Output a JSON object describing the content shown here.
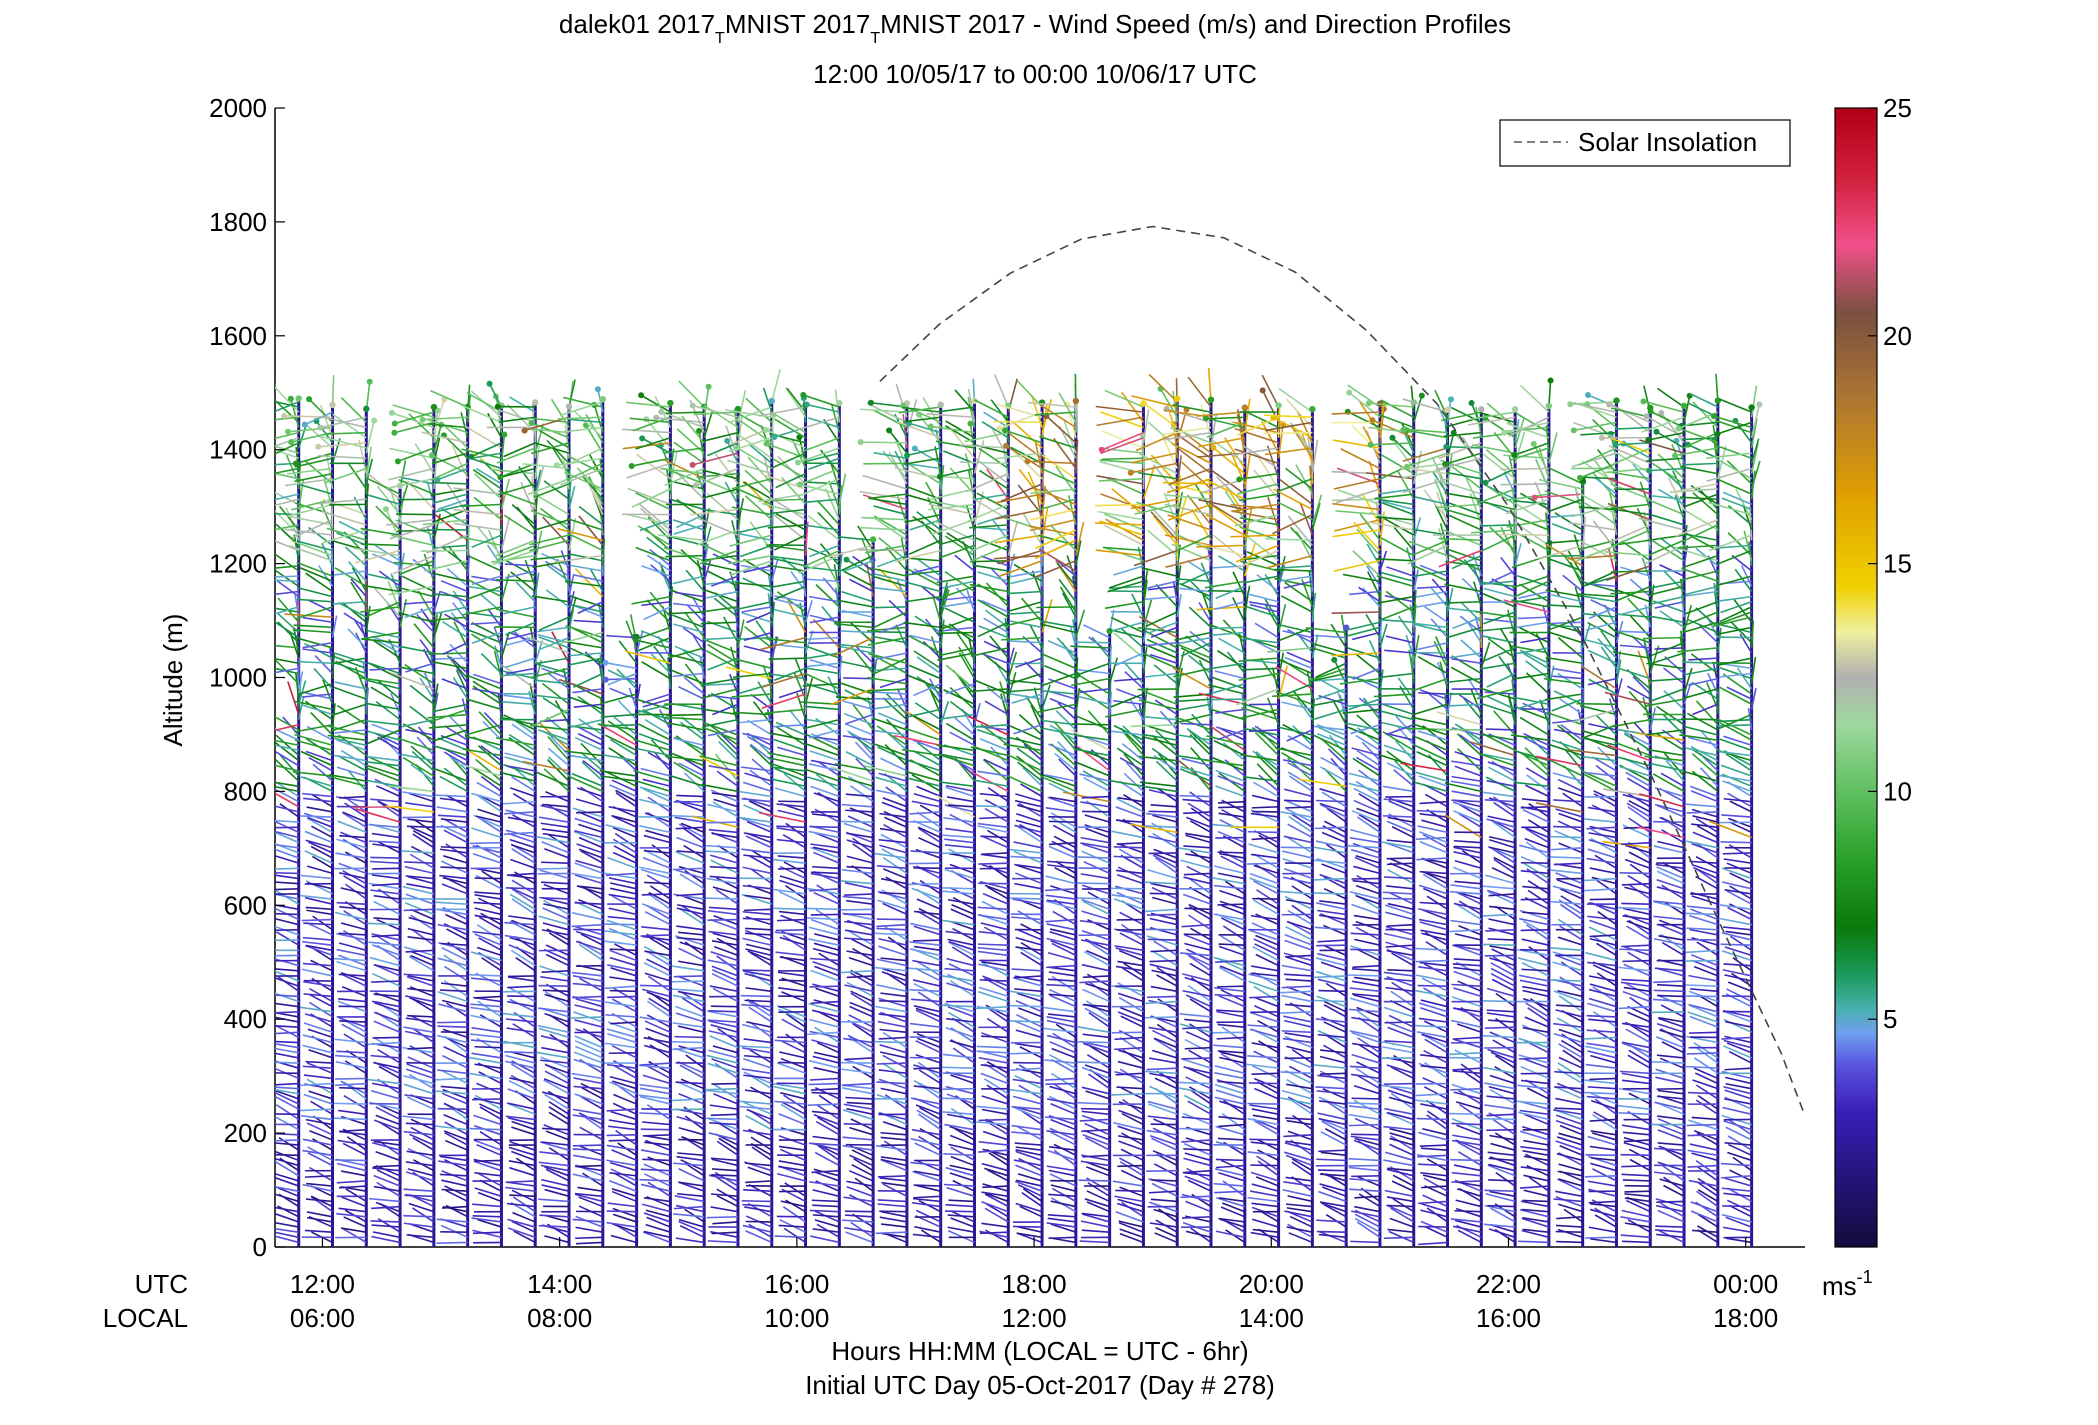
{
  "chart_data": {
    "type": "wind-barb-profile",
    "title_line1_prefix": "dalek01 2017",
    "title_subscript": "T",
    "title_line1_middle": "MNIST 2017",
    "title_line1_suffix": "MNIST 2017 - Wind Speed (m/s) and Direction Profiles",
    "title_line2": "12:00 10/05/17 to 00:00 10/06/17  UTC",
    "ylabel": "Altitude (m)",
    "ylim": [
      0,
      2000
    ],
    "yticks": [
      0,
      200,
      400,
      600,
      800,
      1000,
      1200,
      1400,
      1600,
      1800,
      2000
    ],
    "xlim_hours_utc": [
      11.6,
      24.5
    ],
    "xtick_hours": [
      12,
      14,
      16,
      18,
      20,
      22,
      24
    ],
    "utc_row_label": "UTC",
    "local_row_label": "LOCAL",
    "utc_ticks": [
      "12:00",
      "14:00",
      "16:00",
      "18:00",
      "20:00",
      "22:00",
      "00:00"
    ],
    "local_ticks": [
      "06:00",
      "08:00",
      "10:00",
      "12:00",
      "14:00",
      "16:00",
      "18:00"
    ],
    "xlabel_line1": "Hours HH:MM  (LOCAL = UTC - 6hr)",
    "xlabel_line2": "Initial UTC Day 05-Oct-2017 (Day # 278)",
    "legend": {
      "entries": [
        "Solar Insolation"
      ],
      "placement": "top-right",
      "line_style": "dashed"
    },
    "colorbar": {
      "label": "ms",
      "label_superscript": "-1",
      "range": [
        0,
        25
      ],
      "ticks": [
        5,
        10,
        15,
        20,
        25
      ]
    },
    "solar_insolation_curve": {
      "units_note": "altitude-equivalent curve",
      "points": [
        [
          16.7,
          1520
        ],
        [
          17.2,
          1620
        ],
        [
          17.8,
          1710
        ],
        [
          18.4,
          1770
        ],
        [
          19.0,
          1792
        ],
        [
          19.6,
          1772
        ],
        [
          20.2,
          1712
        ],
        [
          20.8,
          1610
        ],
        [
          21.4,
          1480
        ],
        [
          22.0,
          1300
        ],
        [
          22.6,
          1080
        ],
        [
          23.2,
          830
        ],
        [
          23.8,
          560
        ],
        [
          24.3,
          340
        ],
        [
          24.5,
          230
        ]
      ]
    },
    "profile_columns": {
      "start_hour": 11.8,
      "end_hour": 24.05,
      "count": 44,
      "typical_top_altitude": 1490,
      "gap_top_altitude_min": 1000,
      "speed_regimes": [
        {
          "altitude_range": [
            0,
            200
          ],
          "typical_speed": 3
        },
        {
          "altitude_range": [
            200,
            800
          ],
          "typical_speed": 3.5
        },
        {
          "altitude_range": [
            800,
            1200
          ],
          "typical_speed": 6
        },
        {
          "altitude_range": [
            1200,
            1500
          ],
          "typical_speed": 9
        }
      ]
    }
  }
}
